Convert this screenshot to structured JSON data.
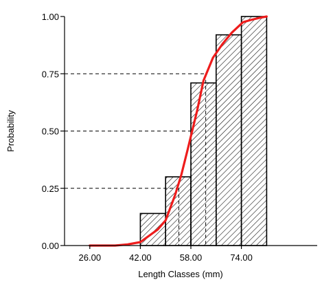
{
  "chart_data": {
    "type": "bar",
    "title": "",
    "xlabel": "Length Classes (mm)",
    "ylabel": "Probability",
    "xlim": [
      18,
      98
    ],
    "ylim": [
      0,
      1
    ],
    "x_ticks": [
      26,
      42,
      58,
      74
    ],
    "x_tick_labels": [
      "26.00",
      "42.00",
      "58.00",
      "74.00"
    ],
    "y_ticks": [
      0,
      0.25,
      0.5,
      0.75,
      1
    ],
    "y_tick_labels": [
      "0.00",
      "0.25",
      "0.50",
      "0.75",
      "1.00"
    ],
    "bars": [
      {
        "x0": 42,
        "x1": 50,
        "value": 0.14
      },
      {
        "x0": 50,
        "x1": 58,
        "value": 0.3
      },
      {
        "x0": 58,
        "x1": 66,
        "value": 0.71
      },
      {
        "x0": 66,
        "x1": 74,
        "value": 0.92
      },
      {
        "x0": 74,
        "x1": 82,
        "value": 1.0
      }
    ],
    "curve": {
      "color": "#ee1c1c",
      "x": [
        26,
        34,
        38,
        42,
        47.5,
        50,
        53,
        55,
        57,
        60,
        62,
        65,
        68,
        71,
        74.5,
        77,
        80,
        82
      ],
      "y": [
        0,
        0,
        0.005,
        0.015,
        0.07,
        0.11,
        0.22,
        0.31,
        0.42,
        0.59,
        0.72,
        0.82,
        0.88,
        0.93,
        0.975,
        0.985,
        0.995,
        1.0
      ]
    },
    "reference_lines": [
      {
        "probability": 0.25,
        "length": 54.2
      },
      {
        "probability": 0.5,
        "length": 58.1
      },
      {
        "probability": 0.75,
        "length": 62.7
      }
    ],
    "hatch_color": "#000000",
    "grid": false
  }
}
